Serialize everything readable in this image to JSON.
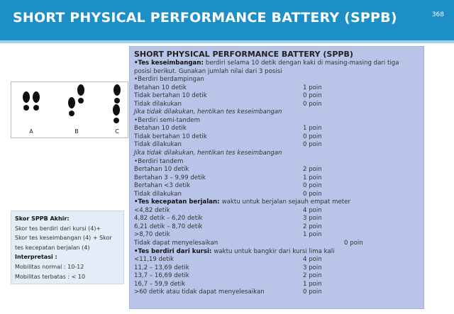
{
  "header": {
    "title": "SHORT PHYSICAL PERFORMANCE BATTERY (SPPB)",
    "page_number": "368"
  },
  "footprints": {
    "labels": [
      "A",
      "B",
      "C"
    ]
  },
  "summary": {
    "lines": [
      {
        "text": "Skor SPPB Akhir:",
        "bold": true
      },
      {
        "text": "Skor tes berdiri dari kursi  (4)+"
      },
      {
        "text": "Skor tes keseimbangan (4) + Skor"
      },
      {
        "text": "tes kecepatan berjalan (4)"
      },
      {
        "text": "Interpretasi :",
        "bold": true
      },
      {
        "text": "Mobilitas normal   : 10-12"
      },
      {
        "text": "Mobilitas terbatas : < 10"
      }
    ]
  },
  "main": {
    "title": "SHORT PHYSICAL PERFORMANCE BATTERY (SPPB)",
    "rows": [
      {
        "lead": "•Tes keseimbangan:",
        "text": "berdiri selama 10 detik dengan kaki di masing-masing dari tiga"
      },
      {
        "text": "posisi berikut. Gunakan jumlah nilai dari 3 posisi"
      },
      {
        "text": "•Berdiri berdampingan"
      },
      {
        "text": "Betahan 10 detik",
        "score": "1 poin"
      },
      {
        "text": "Tidak bertahan 10 detik",
        "score": "0 poin"
      },
      {
        "text": "Tidak dilakukan",
        "score": "0 poin"
      },
      {
        "text": "Jika tidak dilakukan, hentikan tes keseimbangan",
        "italic": true
      },
      {
        "text": "•Berdiri semi-tandem"
      },
      {
        "text": "Betahan 10 detik",
        "score": "1 poin"
      },
      {
        "text": "Tidak bertahan 10 detik",
        "score": "0 poin"
      },
      {
        "text": "Tidak dilakukan",
        "score": "0 poin"
      },
      {
        "text": "Jika tidak dilakukan, hentikan tes keseimbangan",
        "italic": true
      },
      {
        "text": "•Berdiri tandem"
      },
      {
        "text": "Bertahan 10 detik",
        "score": "2 poin"
      },
      {
        "text": "Bertahan 3 – 9,99 detik",
        "score": "1 poin"
      },
      {
        "text": "Bertahan <3 detik",
        "score": "0 poin"
      },
      {
        "text": "Tidak dilakukan",
        "score": "0 poin"
      },
      {
        "lead": "•Tes kecepatan berjalan:",
        "text": "waktu untuk berjalan sejauh empat meter"
      },
      {
        "text": "<4,82 detik",
        "score": "4 poin"
      },
      {
        "text": "4,82 detik – 6,20 detik",
        "score": "3 poin"
      },
      {
        "text": "6,21 detik – 8,70 detik",
        "score": "2 poin"
      },
      {
        "text": ">8,70 detik",
        "score": "1 poin"
      },
      {
        "text": "Tidak dapat menyelesaikan",
        "score": "0 poin"
      },
      {
        "lead": "•Tes berdiri dari kursi:",
        "text": "waktu untuk bangkir dari kursi lima kali"
      },
      {
        "text": "<11,19 detik",
        "score": "4 poin"
      },
      {
        "text": "11,2 – 13,69 detik",
        "score": "3 poin"
      },
      {
        "text": "13,7 – 16,69 detik",
        "score": "2 poin"
      },
      {
        "text": "16,7 – 59,9 detik",
        "score": "1 poin"
      },
      {
        "text": ">60 detik atau tidak dapat menyelesaikan",
        "score": "0 poin"
      }
    ]
  }
}
